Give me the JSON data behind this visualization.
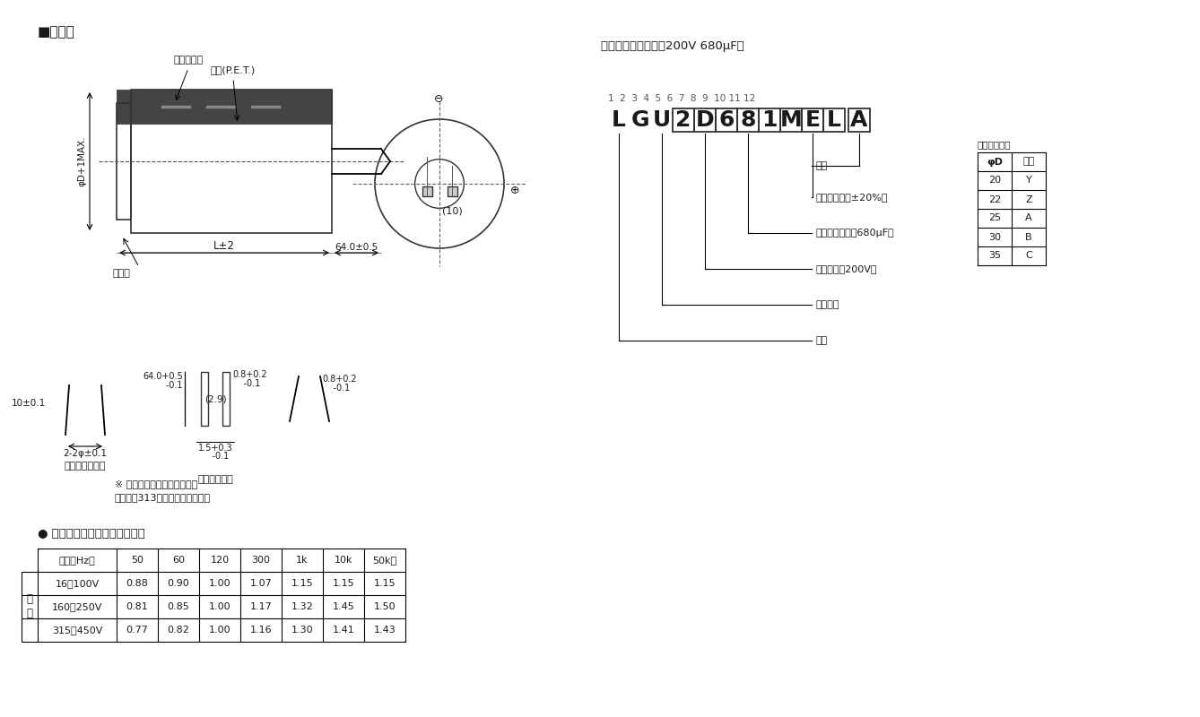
{
  "bg_color": "#ffffff",
  "title_section": "■尺寸图",
  "right_title": "品号编码体系（例：200V 680μF）",
  "part_number_label": "LGU",
  "part_number_boxed": "2D681MEL",
  "part_number_last": "A",
  "part_number_digits": "1  2  3  4  5  6  7  8  9  10 11 12",
  "code_table_title": "铝壳尺寸代码",
  "code_table_headers": [
    "φD",
    "编码"
  ],
  "code_table_rows": [
    [
      "20",
      "Y"
    ],
    [
      "22",
      "Z"
    ],
    [
      "25",
      "A"
    ],
    [
      "30",
      "B"
    ],
    [
      "35",
      "C"
    ]
  ],
  "bracket_labels": [
    "型状",
    "容量容许差（±20%）",
    "额定静电容量（680μF）",
    "额定电压（200V）",
    "系列名称",
    "品种"
  ],
  "note_line1": "※ 对其他的端子型状也制作。",
  "note_line2": "请参照第313页的端子型状一项。",
  "table_title": "● 额定纹波电流的频率补正系数",
  "table_col_headers": [
    "频率（Hz）",
    "50",
    "60",
    "120",
    "300",
    "1k",
    "10k",
    "50k～"
  ],
  "table_row_label_chars": [
    "系",
    "数"
  ],
  "table_row_labels": [
    "16～100V",
    "160～250V",
    "315～450V"
  ],
  "table_data": [
    [
      "0.88",
      "0.90",
      "1.00",
      "1.07",
      "1.15",
      "1.15",
      "1.15"
    ],
    [
      "0.81",
      "0.85",
      "1.00",
      "1.17",
      "1.32",
      "1.45",
      "1.50"
    ],
    [
      "0.77",
      "0.82",
      "1.00",
      "1.16",
      "1.30",
      "1.41",
      "1.43"
    ]
  ],
  "ann_cathode": "阴极标示带",
  "ann_sleeve": "外套(P.E.T.)",
  "ann_dim_D": "φD+1MAX.",
  "ann_dim_L": "L±2",
  "ann_dim_lead": "64.0±0.5",
  "ann_pressure": "压力阀",
  "ann_dim_10": "(10)",
  "ann_base": "（基板孔尺寸）",
  "ann_terminal": "（端子型状）",
  "ann_lead_angle": "10±0.1",
  "ann_lead_pitch": "2-2φ±0.1",
  "ann_pin_w": "0.8+0.2\n    -0.1",
  "ann_pin_h_top": "64.0+0.5",
  "ann_pin_h_bot": "      -0.1",
  "ann_inner_h": "(2.9)",
  "ann_pin_bot_top": "1.5+0.3",
  "ann_pin_bot_bot": "    -0.1",
  "ann_pin_w2": "0.8+0.2\n    -0.1"
}
